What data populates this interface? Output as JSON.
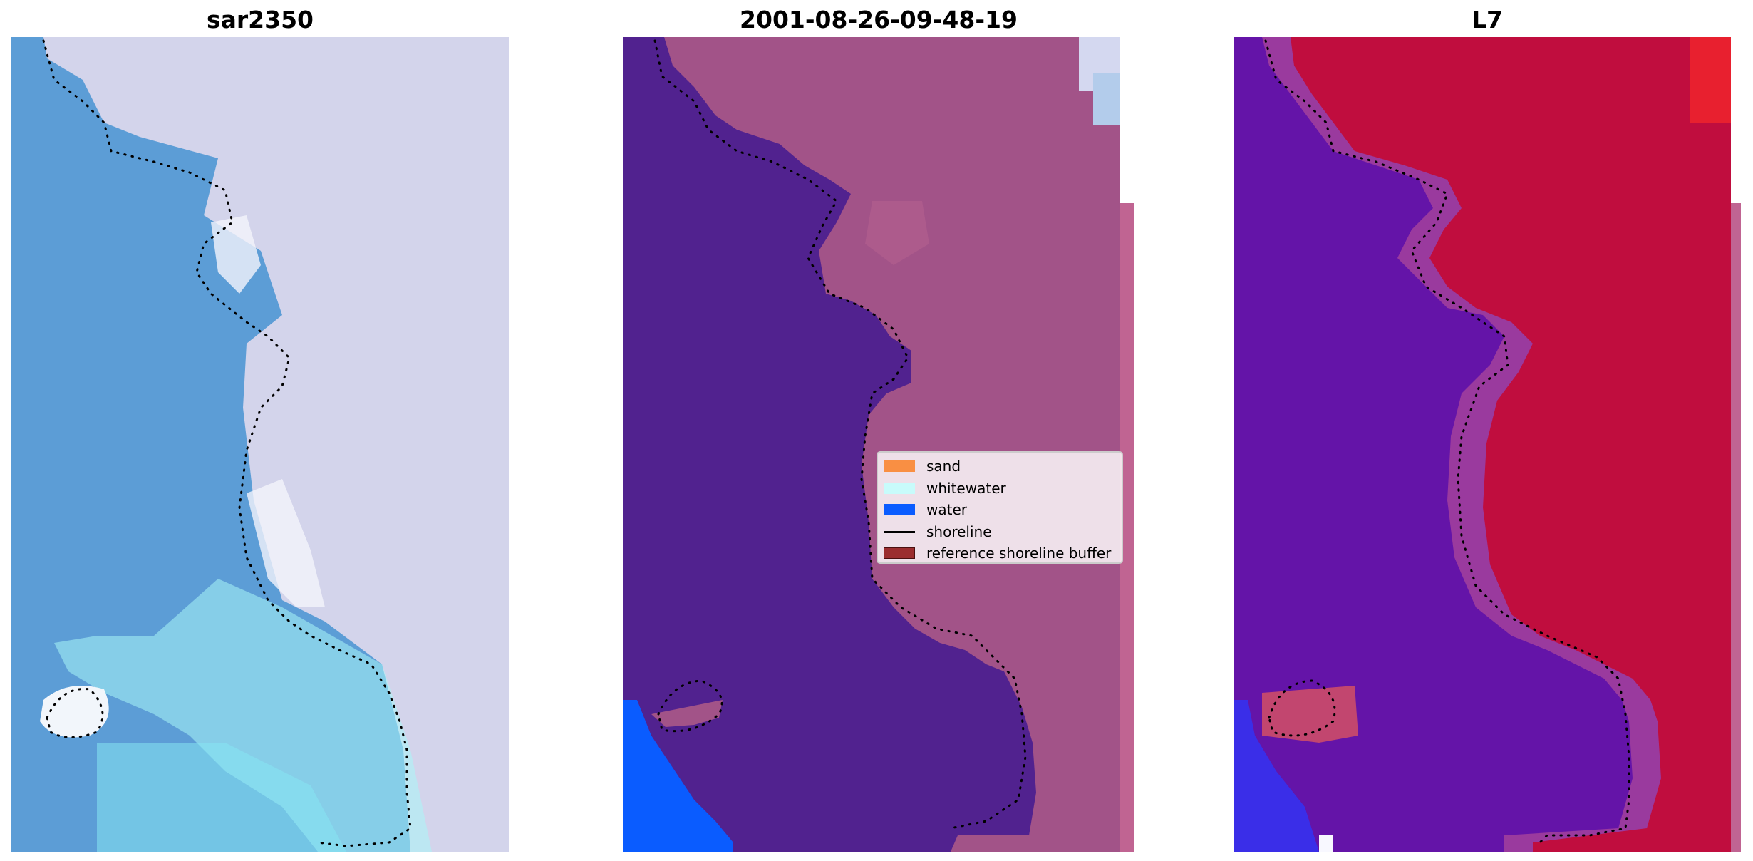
{
  "panels": [
    {
      "title": "sar2350"
    },
    {
      "title": "2001-08-26-09-48-19"
    },
    {
      "title": "L7"
    }
  ],
  "legend": {
    "items": [
      {
        "label": "sand",
        "color": "#f98f43"
      },
      {
        "label": "whitewater",
        "color": "#c8fbfb"
      },
      {
        "label": "water",
        "color": "#0a5cff"
      },
      {
        "label": "shoreline",
        "color": "#000000"
      },
      {
        "label": "reference shoreline buffer",
        "color": "#9b2d2f"
      }
    ]
  },
  "colors": {
    "ocean_rgb": "#5c9dd6",
    "beach_rgb": "#d3d4eb",
    "whitewater_rgb": "#a9f5f7",
    "class_water_overlay": "#51228f",
    "class_sand_overlay": "#a25388",
    "class_water": "#0a5cff",
    "ndwi_water": "#6414a8",
    "ndwi_land": "#c00d3e",
    "shoreline": "#000000"
  }
}
